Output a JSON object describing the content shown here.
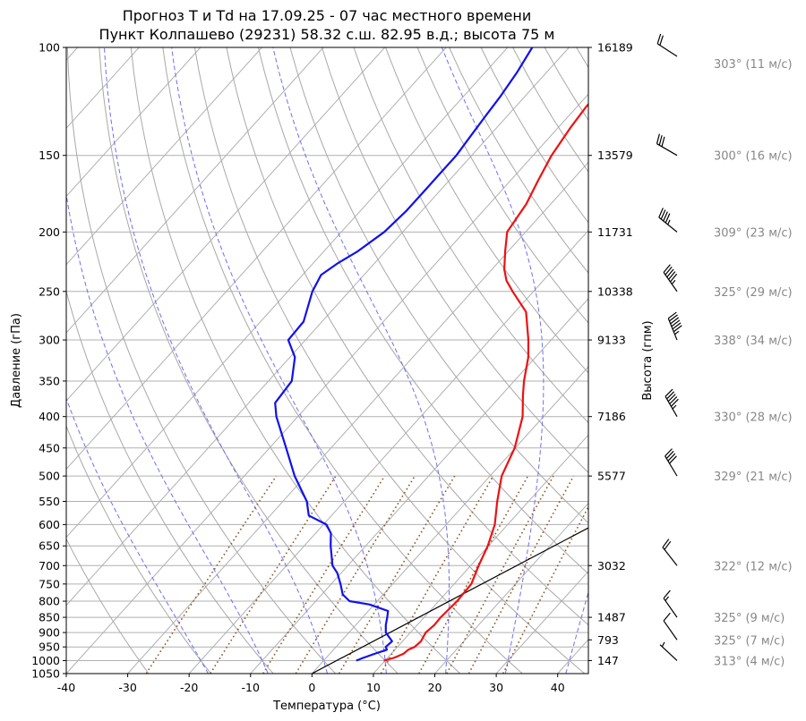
{
  "titles": {
    "line1": "Прогноз T и Td на 17.09.25 - 07 час местного времени",
    "line2": "Пункт Колпашево (29231) 58.32 с.ш. 82.95 в.д.; высота 75 м"
  },
  "chart_data": {
    "type": "skew-t",
    "xlabel": "Температура (°C)",
    "ylabel": "Давление (гПа)",
    "y2label": "Высота (гпм)",
    "xlim": [
      -40,
      45
    ],
    "ylim": [
      1050,
      100
    ],
    "x_ticks": [
      "-40",
      "-30",
      "-20",
      "-10",
      "0",
      "10",
      "20",
      "30",
      "40"
    ],
    "y_ticks": [
      "100",
      "150",
      "200",
      "250",
      "300",
      "350",
      "400",
      "450",
      "500",
      "550",
      "600",
      "650",
      "700",
      "750",
      "800",
      "850",
      "900",
      "950",
      "1000",
      "1050"
    ],
    "heights": [
      {
        "p": 100,
        "label": "16189"
      },
      {
        "p": 150,
        "label": "13579"
      },
      {
        "p": 200,
        "label": "11731"
      },
      {
        "p": 250,
        "label": "10338"
      },
      {
        "p": 300,
        "label": "9133"
      },
      {
        "p": 400,
        "label": "7186"
      },
      {
        "p": 500,
        "label": "5577"
      },
      {
        "p": 700,
        "label": "3032"
      },
      {
        "p": 850,
        "label": "1487"
      },
      {
        "p": 925,
        "label": "793"
      },
      {
        "p": 1000,
        "label": "147"
      }
    ],
    "series": [
      {
        "name": "T",
        "color": "#ee1111",
        "p": [
          1000,
          990,
          975,
          960,
          950,
          930,
          900,
          875,
          850,
          800,
          750,
          700,
          650,
          600,
          550,
          500,
          450,
          400,
          370,
          350,
          320,
          300,
          270,
          250,
          240,
          230,
          215,
          200,
          180,
          165,
          150,
          135,
          125,
          115,
          108,
          100
        ],
        "t": [
          9.8,
          11.0,
          12.0,
          12.2,
          12.8,
          13.0,
          12.5,
          12.8,
          12.7,
          13.0,
          12.8,
          11.3,
          9.9,
          7.9,
          4.9,
          1.9,
          -0.1,
          -3.4,
          -6.4,
          -8.4,
          -11.2,
          -13.7,
          -18.2,
          -23.4,
          -26.0,
          -28.0,
          -30.5,
          -33.0,
          -34.0,
          -35.5,
          -37.0,
          -38.0,
          -38.5,
          -38.5,
          -38.5,
          -38.0
        ]
      },
      {
        "name": "Td",
        "color": "#1111ee",
        "p": [
          1000,
          990,
          975,
          960,
          950,
          930,
          900,
          875,
          850,
          830,
          810,
          800,
          780,
          750,
          720,
          700,
          650,
          620,
          600,
          580,
          550,
          500,
          450,
          400,
          380,
          350,
          320,
          300,
          280,
          250,
          235,
          225,
          215,
          200,
          185,
          170,
          160,
          150,
          140,
          130,
          120,
          110,
          100
        ],
        "t": [
          5.3,
          6.0,
          7.3,
          8.7,
          8.1,
          8.3,
          6.0,
          4.9,
          4.0,
          3.2,
          -0.8,
          -4.5,
          -6.6,
          -8.5,
          -10.6,
          -12.5,
          -15.7,
          -17.5,
          -19.5,
          -23.7,
          -26.1,
          -31.8,
          -37.3,
          -43.5,
          -45.7,
          -46.2,
          -49.2,
          -52.8,
          -53.0,
          -56.0,
          -57.0,
          -56.0,
          -54.5,
          -53.0,
          -52.5,
          -52.5,
          -52.5,
          -52.5,
          -53.0,
          -53.5,
          -54.0,
          -54.8,
          -56.0
        ]
      }
    ],
    "parcel": {
      "name": "parcel",
      "color": "#000000",
      "t_start": 0,
      "p_start": 1050,
      "t_end": 45,
      "p_end": 370
    },
    "winds": [
      {
        "p": 100,
        "dir": 303,
        "speed": 11,
        "label": "303° (11 м/с)"
      },
      {
        "p": 150,
        "dir": 300,
        "speed": 16,
        "label": "300° (16 м/с)"
      },
      {
        "p": 200,
        "dir": 309,
        "speed": 23,
        "label": "309° (23 м/с)"
      },
      {
        "p": 250,
        "dir": 325,
        "speed": 29,
        "label": "325° (29 м/с)"
      },
      {
        "p": 300,
        "dir": 338,
        "speed": 34,
        "label": "338° (34 м/с)"
      },
      {
        "p": 400,
        "dir": 330,
        "speed": 28,
        "label": "330° (28 м/с)"
      },
      {
        "p": 500,
        "dir": 329,
        "speed": 21,
        "label": "329° (21 м/с)"
      },
      {
        "p": 700,
        "dir": 322,
        "speed": 12,
        "label": "322° (12 м/с)"
      },
      {
        "p": 850,
        "dir": 325,
        "speed": 9,
        "label": "325° (9 м/с)"
      },
      {
        "p": 925,
        "dir": 325,
        "speed": 7,
        "label": "325° (7 м/с)"
      },
      {
        "p": 1000,
        "dir": 313,
        "speed": 4,
        "label": "313° (4 м/с)"
      }
    ],
    "colors": {
      "temperature": "#ee1111",
      "dewpoint": "#1111ee",
      "dry_adiabat": "#a8a8a8",
      "moist_adiabat": "#6f6ff2",
      "mixing_ratio": "#8b5a2b",
      "grid": "#b0b0b0"
    }
  }
}
